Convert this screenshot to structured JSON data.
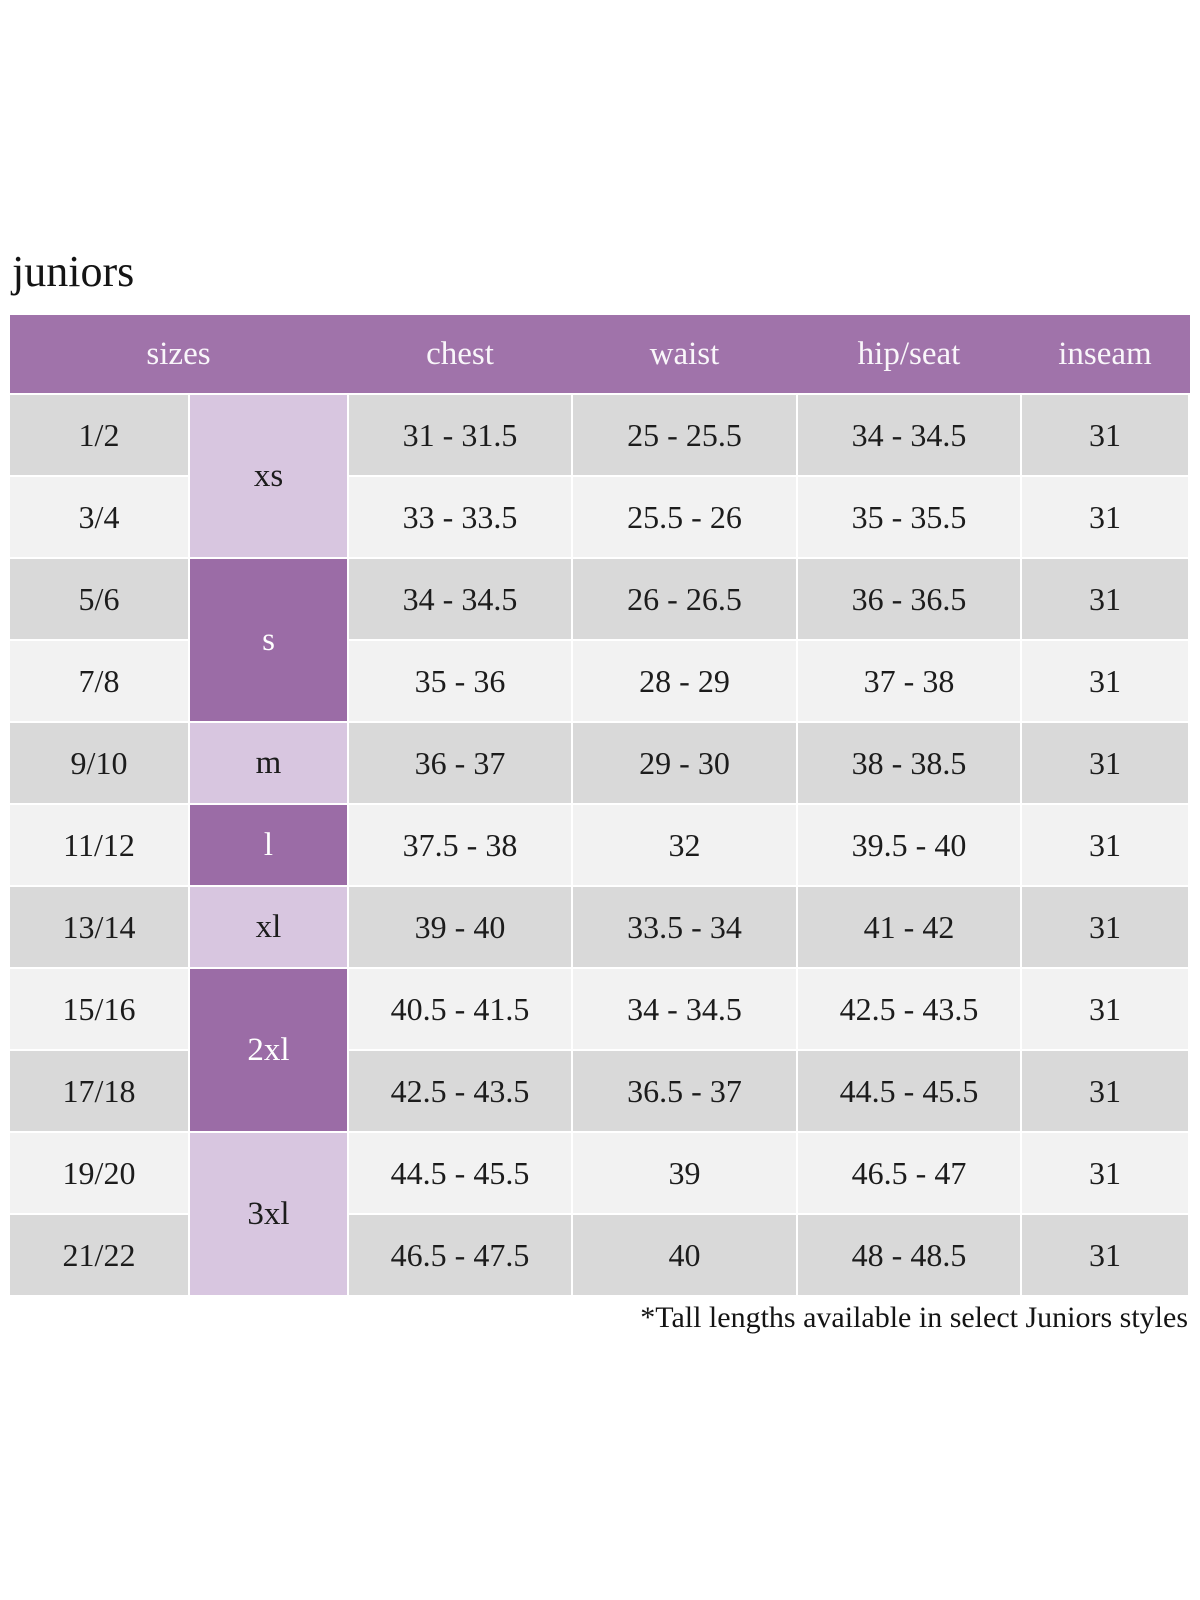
{
  "title": "juniors",
  "footnote": "*Tall lengths available in select Juniors styles",
  "colors": {
    "header_bg": "#a073aa",
    "size_cell_dark": "#9b6ca6",
    "size_cell_light": "#d8c6e0",
    "row_dark": "#d9d9d9",
    "row_light": "#f2f2f2",
    "header_text": "#f9f6fa",
    "body_text": "#1c1c1c"
  },
  "chart_data": {
    "type": "table",
    "title": "juniors",
    "headers": {
      "sizes": "sizes",
      "chest": "chest",
      "waist": "waist",
      "hip_seat": "hip/seat",
      "inseam": "inseam"
    },
    "letter_sizes": [
      "xs",
      "s",
      "m",
      "l",
      "xl",
      "2xl",
      "3xl"
    ],
    "rows": [
      {
        "size": "1/2",
        "letter": "xs",
        "chest": "31 - 31.5",
        "waist": "25 - 25.5",
        "hip_seat": "34 - 34.5",
        "inseam": "31"
      },
      {
        "size": "3/4",
        "letter": "xs",
        "chest": "33 - 33.5",
        "waist": "25.5 - 26",
        "hip_seat": "35 - 35.5",
        "inseam": "31"
      },
      {
        "size": "5/6",
        "letter": "s",
        "chest": "34 - 34.5",
        "waist": "26 - 26.5",
        "hip_seat": "36 - 36.5",
        "inseam": "31"
      },
      {
        "size": "7/8",
        "letter": "s",
        "chest": "35 - 36",
        "waist": "28 - 29",
        "hip_seat": "37 - 38",
        "inseam": "31"
      },
      {
        "size": "9/10",
        "letter": "m",
        "chest": "36 - 37",
        "waist": "29 - 30",
        "hip_seat": "38 - 38.5",
        "inseam": "31"
      },
      {
        "size": "11/12",
        "letter": "l",
        "chest": "37.5 - 38",
        "waist": "32",
        "hip_seat": "39.5 - 40",
        "inseam": "31"
      },
      {
        "size": "13/14",
        "letter": "xl",
        "chest": "39 - 40",
        "waist": "33.5 - 34",
        "hip_seat": "41 - 42",
        "inseam": "31"
      },
      {
        "size": "15/16",
        "letter": "2xl",
        "chest": "40.5 - 41.5",
        "waist": "34 - 34.5",
        "hip_seat": "42.5 - 43.5",
        "inseam": "31"
      },
      {
        "size": "17/18",
        "letter": "2xl",
        "chest": "42.5 - 43.5",
        "waist": "36.5 - 37",
        "hip_seat": "44.5 - 45.5",
        "inseam": "31"
      },
      {
        "size": "19/20",
        "letter": "3xl",
        "chest": "44.5 - 45.5",
        "waist": "39",
        "hip_seat": "46.5 - 47",
        "inseam": "31"
      },
      {
        "size": "21/22",
        "letter": "3xl",
        "chest": "46.5 - 47.5",
        "waist": "40",
        "hip_seat": "48 - 48.5",
        "inseam": "31"
      }
    ]
  }
}
